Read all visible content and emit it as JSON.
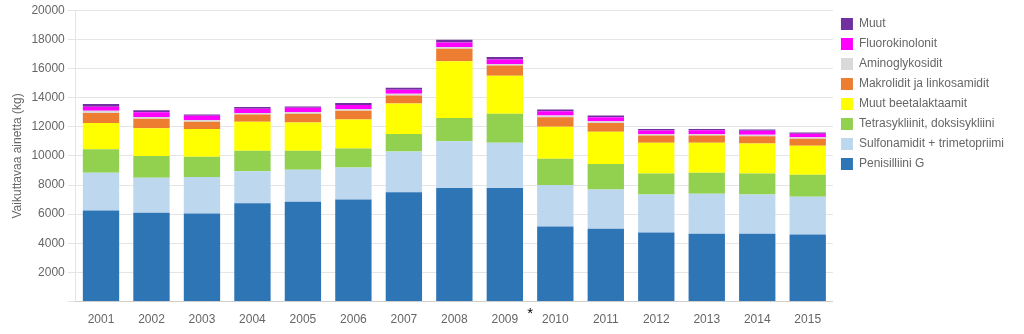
{
  "chart_data": {
    "type": "bar",
    "stacked": true,
    "categories": [
      "2001",
      "2002",
      "2003",
      "2004",
      "2005",
      "2006",
      "2007",
      "2008",
      "2009",
      "2010",
      "2011",
      "2012",
      "2013",
      "2014",
      "2015"
    ],
    "series": [
      {
        "name": "Penisilliini G",
        "color": "#2E75B6",
        "values": [
          6250,
          6100,
          6050,
          6750,
          6850,
          7000,
          7500,
          7800,
          7800,
          5150,
          5000,
          4750,
          4650,
          4650,
          4600
        ]
      },
      {
        "name": "Sulfonamidit + trimetopriimi",
        "color": "#BDD7EE",
        "values": [
          2600,
          2400,
          2500,
          2200,
          2200,
          2200,
          2800,
          3200,
          3100,
          2850,
          2700,
          2600,
          2750,
          2700,
          2600
        ]
      },
      {
        "name": "Tetrasykliinit, doksisykliini",
        "color": "#92D050",
        "values": [
          1600,
          1500,
          1400,
          1400,
          1300,
          1300,
          1200,
          1600,
          2000,
          1800,
          1750,
          1450,
          1450,
          1450,
          1500
        ]
      },
      {
        "name": "Muut beetalaktaamit",
        "color": "#FFFF00",
        "values": [
          1800,
          1900,
          1900,
          2000,
          1950,
          2000,
          2100,
          3900,
          2600,
          2200,
          2200,
          2100,
          2050,
          2050,
          2000
        ]
      },
      {
        "name": "Makrolidit ja linkosamidit",
        "color": "#ED7D31",
        "values": [
          700,
          650,
          500,
          500,
          600,
          600,
          550,
          850,
          700,
          650,
          600,
          500,
          500,
          500,
          480
        ]
      },
      {
        "name": "Aminoglykosidit",
        "color": "#D9D9D9",
        "values": [
          150,
          120,
          120,
          100,
          120,
          120,
          120,
          120,
          100,
          130,
          120,
          100,
          100,
          100,
          100
        ]
      },
      {
        "name": "Fluorokinolonit",
        "color": "#FF00FF",
        "values": [
          280,
          330,
          280,
          280,
          280,
          280,
          270,
          320,
          320,
          280,
          280,
          250,
          260,
          270,
          240
        ]
      },
      {
        "name": "Muut",
        "color": "#7030A0",
        "values": [
          180,
          130,
          90,
          130,
          90,
          130,
          130,
          180,
          170,
          130,
          130,
          90,
          90,
          90,
          90
        ]
      }
    ],
    "y_label": "Vaikuttavaa ainetta (kg)",
    "ylim": [
      0,
      20000
    ],
    "yticks": [
      {
        "value": 0,
        "label": ""
      },
      2000,
      4000,
      6000,
      8000,
      10000,
      12000,
      14000,
      16000,
      18000,
      20000
    ],
    "grid": true,
    "legend": "right",
    "annotations": [
      {
        "text": "*",
        "between": [
          "2009",
          "2010"
        ]
      }
    ]
  }
}
